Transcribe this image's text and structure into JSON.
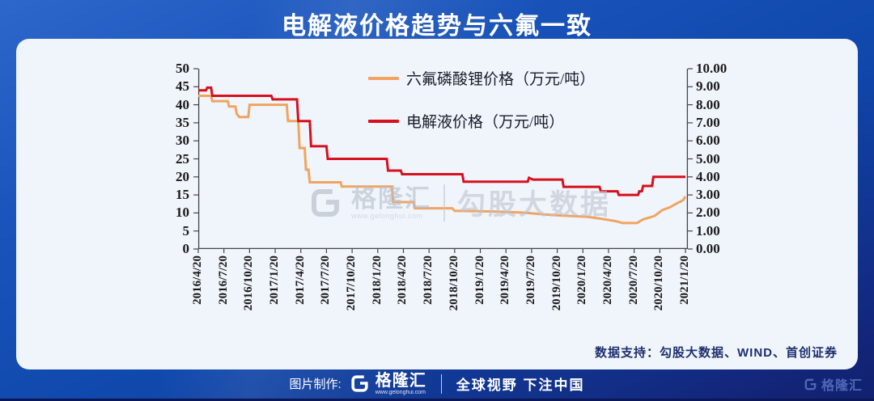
{
  "header": {
    "title": "电解液价格趋势与六氟一致"
  },
  "chart_data": {
    "type": "line",
    "title": "电解液价格趋势与六氟一致",
    "x_tick_labels": [
      "2016/4/20",
      "2016/7/20",
      "2016/10/20",
      "2017/1/20",
      "2017/4/20",
      "2017/7/20",
      "2017/10/20",
      "2018/1/20",
      "2018/4/20",
      "2018/7/20",
      "2018/10/20",
      "2019/1/20",
      "2019/4/20",
      "2019/7/20",
      "2019/10/20",
      "2020/1/20",
      "2020/4/20",
      "2020/7/20",
      "2020/10/20",
      "2021/1/20"
    ],
    "left_axis": {
      "min": 0,
      "max": 50,
      "ticks": [
        "50",
        "45",
        "40",
        "35",
        "30",
        "25",
        "20",
        "15",
        "10",
        "5",
        "0"
      ]
    },
    "right_axis": {
      "min": 0,
      "max": 10,
      "ticks": [
        "10.00",
        "9.00",
        "8.00",
        "7.00",
        "6.00",
        "5.00",
        "4.00",
        "3.00",
        "2.00",
        "1.00",
        "0.00"
      ]
    },
    "grid": false,
    "legend_position": "top-center",
    "legend": [
      {
        "label": "六氟磷酸锂价格（万元/吨）",
        "color": "#f0a45f",
        "axis": "left"
      },
      {
        "label": "电解液价格（万元/吨）",
        "color": "#d6101d",
        "axis": "right"
      }
    ],
    "x_unit": "quarter index, 0 = 2016/4/20 … 19 = 2021/1/20",
    "series": [
      {
        "name": "六氟磷酸锂价格",
        "axis": "left",
        "color": "#f0a45f",
        "unit": "万元/吨",
        "points": [
          [
            0,
            42.5
          ],
          [
            0.5,
            42.5
          ],
          [
            0.55,
            41
          ],
          [
            1.15,
            41
          ],
          [
            1.2,
            39.5
          ],
          [
            1.45,
            39.5
          ],
          [
            1.5,
            37.5
          ],
          [
            1.6,
            36.6
          ],
          [
            1.95,
            36.6
          ],
          [
            2.0,
            40
          ],
          [
            3.45,
            40
          ],
          [
            3.5,
            35.5
          ],
          [
            3.9,
            35.5
          ],
          [
            3.95,
            28
          ],
          [
            4.15,
            28
          ],
          [
            4.2,
            22
          ],
          [
            4.3,
            22
          ],
          [
            4.35,
            18.5
          ],
          [
            5.55,
            18.5
          ],
          [
            5.6,
            17.3
          ],
          [
            7.55,
            17.3
          ],
          [
            7.6,
            13
          ],
          [
            8.4,
            13
          ],
          [
            8.45,
            11.3
          ],
          [
            9.9,
            11.3
          ],
          [
            10,
            10.6
          ],
          [
            11.5,
            10.4
          ],
          [
            12.7,
            10.1
          ],
          [
            13.5,
            9.6
          ],
          [
            14.1,
            9.3
          ],
          [
            15.2,
            8.9
          ],
          [
            15.8,
            8.3
          ],
          [
            16.3,
            7.7
          ],
          [
            16.55,
            7.2
          ],
          [
            17.1,
            7.2
          ],
          [
            17.35,
            8.2
          ],
          [
            17.8,
            9.2
          ],
          [
            18.1,
            10.8
          ],
          [
            18.4,
            11.6
          ],
          [
            18.7,
            12.8
          ],
          [
            18.9,
            13.5
          ],
          [
            19,
            14.6
          ]
        ]
      },
      {
        "name": "电解液价格",
        "axis": "right",
        "color": "#d6101d",
        "unit": "万元/吨",
        "points": [
          [
            0,
            8.8
          ],
          [
            0.3,
            8.8
          ],
          [
            0.35,
            8.95
          ],
          [
            0.5,
            8.95
          ],
          [
            0.55,
            8.5
          ],
          [
            2.85,
            8.5
          ],
          [
            2.9,
            8.3
          ],
          [
            3.85,
            8.3
          ],
          [
            3.9,
            7.1
          ],
          [
            4.35,
            7.1
          ],
          [
            4.4,
            5.7
          ],
          [
            5.0,
            5.7
          ],
          [
            5.05,
            5.0
          ],
          [
            7.35,
            5.0
          ],
          [
            7.4,
            4.35
          ],
          [
            7.9,
            4.35
          ],
          [
            7.95,
            4.15
          ],
          [
            10.3,
            4.15
          ],
          [
            10.35,
            3.73
          ],
          [
            12.85,
            3.73
          ],
          [
            12.9,
            3.95
          ],
          [
            13.05,
            3.85
          ],
          [
            14.2,
            3.85
          ],
          [
            14.25,
            3.45
          ],
          [
            15.65,
            3.45
          ],
          [
            15.7,
            3.2
          ],
          [
            16.35,
            3.2
          ],
          [
            16.4,
            3.0
          ],
          [
            17.15,
            3.0
          ],
          [
            17.2,
            3.2
          ],
          [
            17.3,
            3.2
          ],
          [
            17.35,
            3.5
          ],
          [
            17.7,
            3.5
          ],
          [
            17.75,
            4.0
          ],
          [
            19,
            4.0
          ]
        ]
      }
    ],
    "colors": {
      "axis": "#444444",
      "plot_bg": "#f0f5fc"
    }
  },
  "watermark": {
    "brand": "格隆汇",
    "url": "www.gelonghui.com",
    "suffix": "勾股大数据"
  },
  "support": {
    "label": "数据支持：勾股大数据、WIND、首创证券"
  },
  "footer": {
    "made_by": "图片制作:",
    "brand": "格隆汇",
    "brand_url": "www.gelonghui.com",
    "slogan": "全球视野 下注中国",
    "corner_brand": "格隆汇"
  }
}
